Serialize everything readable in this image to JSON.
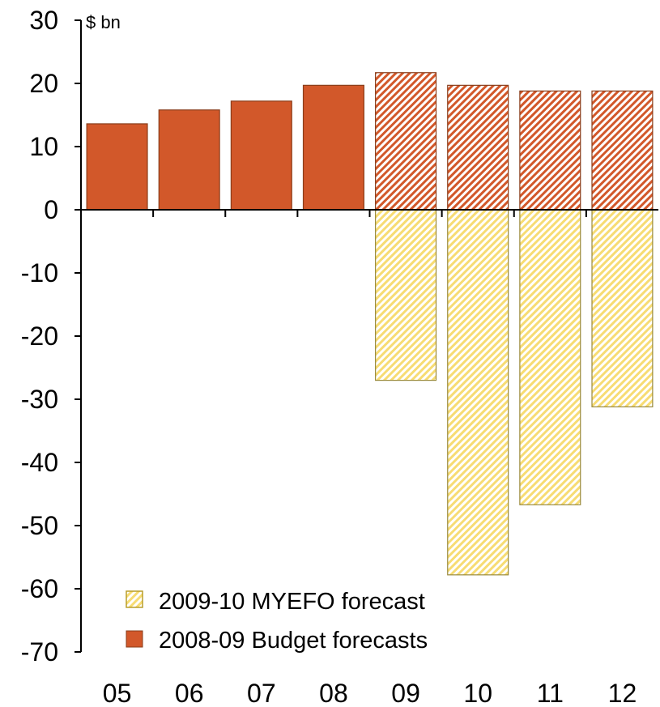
{
  "chart_data": {
    "type": "bar",
    "ylabel": "$ bn",
    "ylim": [
      -70,
      30
    ],
    "yticks": [
      30,
      20,
      10,
      0,
      -10,
      -20,
      -30,
      -40,
      -50,
      -60,
      -70
    ],
    "categories": [
      "05",
      "06",
      "07",
      "08",
      "09",
      "10",
      "11",
      "12"
    ],
    "series": [
      {
        "name": "2008-09 Budget forecasts",
        "color": "#d2582a",
        "style": "solid-actual-then-hatched-forecast",
        "values": [
          13.6,
          15.8,
          17.2,
          19.7,
          21.7,
          19.7,
          18.8,
          18.8
        ]
      },
      {
        "name": "2009-10 MYEFO forecast",
        "color": "#fbe48a",
        "style": "hatched",
        "values": [
          null,
          null,
          null,
          null,
          -27.0,
          -57.8,
          -46.7,
          -31.2
        ]
      }
    ],
    "legend": "bottom-left",
    "grid": false
  }
}
